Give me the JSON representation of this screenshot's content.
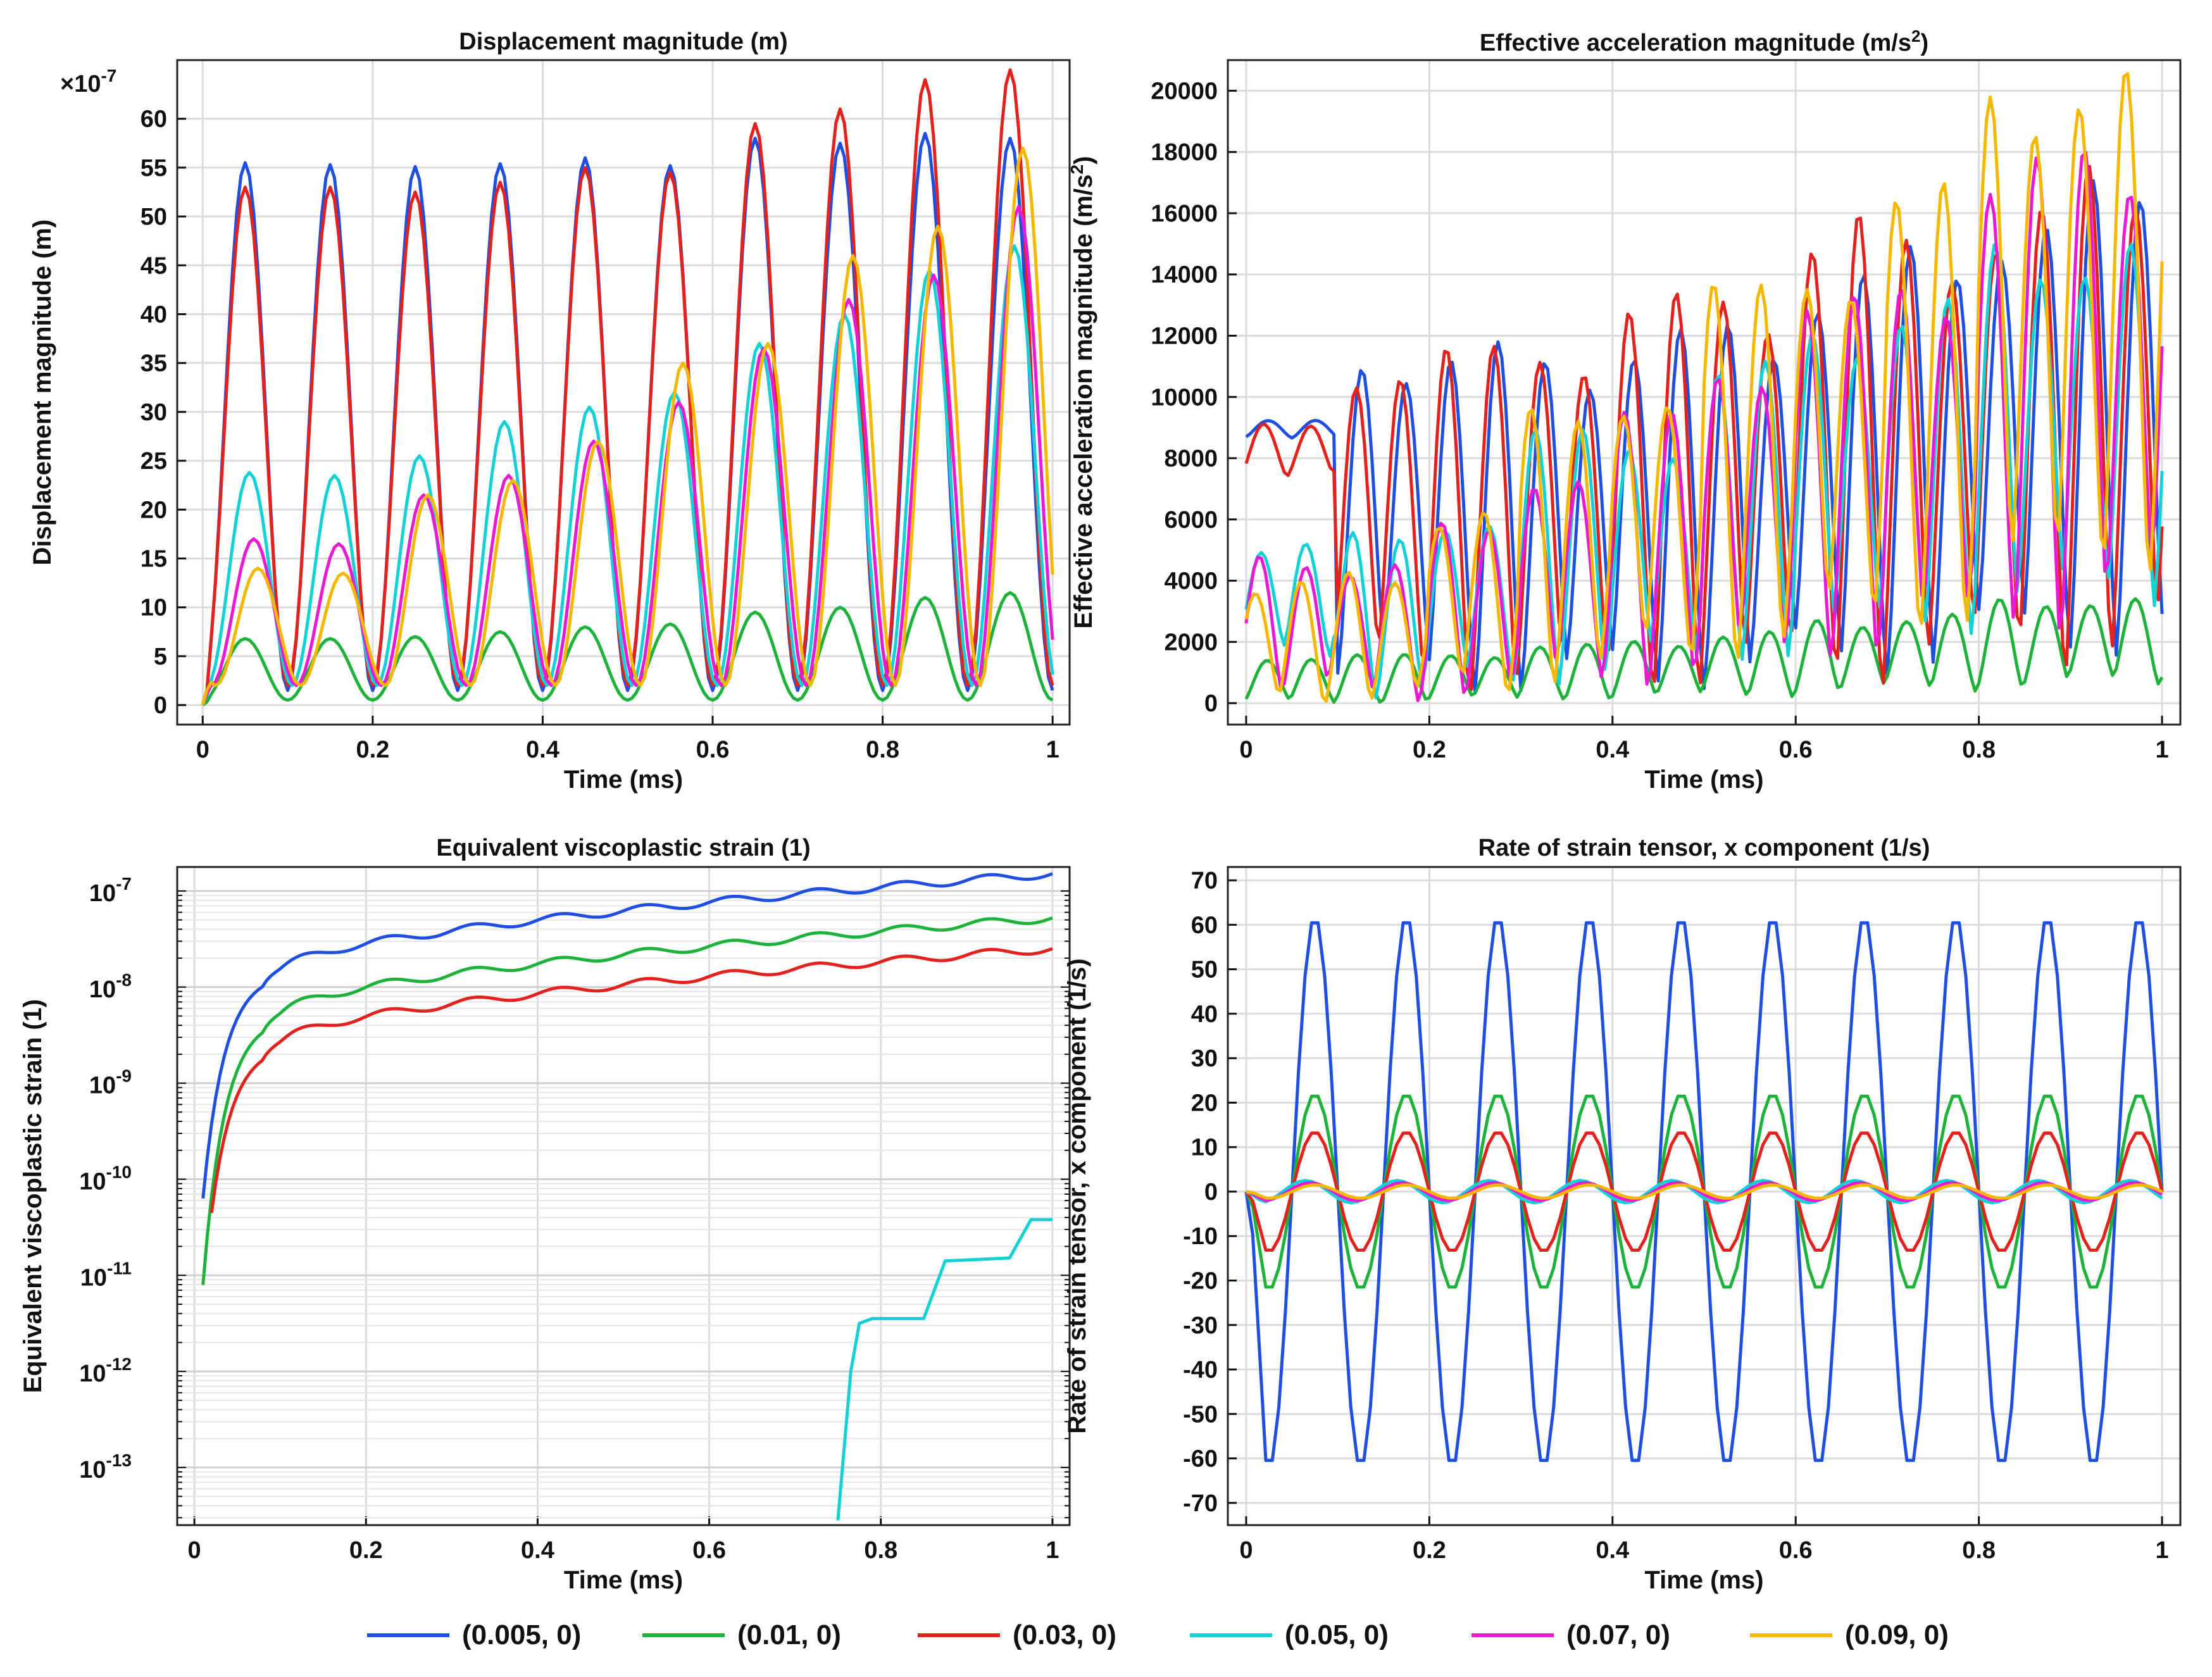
{
  "legend": [
    {
      "name": "(0.005, 0)",
      "color": "#1f4fe0"
    },
    {
      "name": "(0.01, 0)",
      "color": "#1db33a"
    },
    {
      "name": "(0.03, 0)",
      "color": "#e3211d"
    },
    {
      "name": "(0.05, 0)",
      "color": "#13d1d6"
    },
    {
      "name": "(0.07, 0)",
      "color": "#e81ad6"
    },
    {
      "name": "(0.09, 0)",
      "color": "#f5b800"
    }
  ],
  "chart_data": [
    {
      "type": "line",
      "title": "Displacement magnitude (m)",
      "xlabel": "Time (ms)",
      "ylabel": "Displacement magnitude (m)",
      "multiplier": "×10",
      "multiplier_exp": "-7",
      "xlim": [
        -0.03,
        1.02
      ],
      "ylim": [
        -2,
        66
      ],
      "xticks": [
        0,
        0.2,
        0.4,
        0.6,
        0.8,
        1
      ],
      "xtick_labels": [
        "0",
        "0.2",
        "0.4",
        "0.6",
        "0.8",
        "1"
      ],
      "yticks": [
        0,
        5,
        10,
        15,
        20,
        25,
        30,
        35,
        40,
        45,
        50,
        55,
        60
      ],
      "ytick_labels": [
        "0",
        "5",
        "10",
        "15",
        "20",
        "25",
        "30",
        "35",
        "40",
        "45",
        "50",
        "55",
        "60"
      ],
      "grid": true,
      "series": [
        {
          "name": "(0.005, 0)",
          "period": 0.1,
          "phase": 0.05,
          "peaks": [
            55.5,
            55.3,
            55.1,
            55.4,
            56.0,
            55.2,
            58.0,
            57.5,
            58.5,
            58.0
          ],
          "base": 1.5
        },
        {
          "name": "(0.01, 0)",
          "period": 0.1,
          "phase": 0.05,
          "peaks": [
            6.8,
            6.8,
            7.0,
            7.5,
            8.0,
            8.3,
            9.5,
            10.0,
            11.0,
            11.5
          ],
          "base": 0.5
        },
        {
          "name": "(0.03, 0)",
          "period": 0.1,
          "phase": 0.05,
          "peaks": [
            53.0,
            53.0,
            52.5,
            53.5,
            55.0,
            54.5,
            59.5,
            61.0,
            64.0,
            65.0
          ],
          "base": 2.0
        },
        {
          "name": "(0.05, 0)",
          "period": 0.1,
          "phase": 0.055,
          "peaks": [
            23.8,
            23.5,
            25.5,
            29.0,
            30.5,
            32.0,
            37.0,
            40.0,
            44.5,
            47.0
          ],
          "base": 2.0
        },
        {
          "name": "(0.07, 0)",
          "period": 0.1,
          "phase": 0.06,
          "peaks": [
            17.0,
            16.5,
            21.5,
            23.5,
            27.0,
            31.0,
            36.5,
            41.5,
            44.0,
            51.0
          ],
          "base": 2.0
        },
        {
          "name": "(0.09, 0)",
          "period": 0.1,
          "phase": 0.065,
          "peaks": [
            14.0,
            13.5,
            21.5,
            23.0,
            27.0,
            35.0,
            37.0,
            46.0,
            49.0,
            57.0
          ],
          "base": 2.0
        }
      ]
    },
    {
      "type": "line",
      "title": "Effective acceleration magnitude (m/s",
      "title_sup": "2",
      "title_end": ")",
      "xlabel": "Time (ms)",
      "ylabel": "Effective acceleration magnitude (m/s",
      "ylabel_sup": "2",
      "ylabel_end": ")",
      "xlim": [
        -0.02,
        1.02
      ],
      "ylim": [
        -700,
        21000
      ],
      "xticks": [
        0,
        0.2,
        0.4,
        0.6,
        0.8,
        1
      ],
      "xtick_labels": [
        "0",
        "0.2",
        "0.4",
        "0.6",
        "0.8",
        "1"
      ],
      "yticks": [
        0,
        2000,
        4000,
        6000,
        8000,
        10000,
        12000,
        14000,
        16000,
        18000,
        20000
      ],
      "ytick_labels": [
        "0",
        "2000",
        "4000",
        "6000",
        "8000",
        "10000",
        "12000",
        "14000",
        "16000",
        "18000",
        "20000"
      ],
      "grid": true,
      "series": [
        {
          "name": "(0.005, 0)",
          "period": 0.05,
          "low": [
            8700,
            1200,
            1000,
            1000,
            1000,
            1300,
            1500,
            1800,
            2200,
            2500
          ],
          "high": [
            9200,
            11200,
            11000,
            11000,
            11500,
            11800,
            13500,
            14000,
            15500,
            16000
          ]
        },
        {
          "name": "(0.01, 0)",
          "period": 0.05,
          "low": [
            0,
            100,
            100,
            200,
            200,
            300,
            400,
            500,
            600,
            700
          ],
          "high": [
            1500,
            1500,
            1600,
            1800,
            2000,
            2200,
            2600,
            2800,
            3200,
            3400
          ]
        },
        {
          "name": "(0.03, 0)",
          "period": 0.05,
          "low": [
            7500,
            1000,
            900,
            900,
            1000,
            1100,
            1300,
            1500,
            1800,
            2000
          ],
          "high": [
            9000,
            11000,
            11000,
            11500,
            12500,
            13000,
            15000,
            14500,
            15500,
            16500
          ]
        },
        {
          "name": "(0.05, 0)",
          "period": 0.05,
          "low": [
            1700,
            500,
            800,
            1200,
            1500,
            2000,
            2500,
            3000,
            3500,
            4000
          ],
          "high": [
            5200,
            5200,
            6000,
            8500,
            8500,
            10500,
            12000,
            12500,
            14500,
            14500
          ]
        },
        {
          "name": "(0.07, 0)",
          "period": 0.05,
          "low": [
            500,
            200,
            500,
            800,
            1000,
            1500,
            2000,
            2500,
            3000,
            3500
          ],
          "high": [
            4500,
            4500,
            5500,
            7500,
            9000,
            11000,
            12500,
            13500,
            16800,
            17500
          ]
        },
        {
          "name": "(0.09, 0)",
          "period": 0.05,
          "low": [
            200,
            200,
            500,
            1000,
            1500,
            2000,
            2500,
            3000,
            4000,
            5000
          ],
          "high": [
            3800,
            4000,
            6200,
            9000,
            10000,
            13000,
            14000,
            16000,
            19800,
            19600
          ]
        }
      ]
    },
    {
      "type": "line",
      "scale": "log",
      "title": "Equivalent viscoplastic strain (1)",
      "xlabel": "Time (ms)",
      "ylabel": "Equivalent viscoplastic strain (1)",
      "xlim": [
        -0.02,
        1.02
      ],
      "ylim_exp": [
        -13.6,
        -6.75
      ],
      "xticks": [
        0,
        0.2,
        0.4,
        0.6,
        0.8,
        1
      ],
      "xtick_labels": [
        "0",
        "0.2",
        "0.4",
        "0.6",
        "0.8",
        "1"
      ],
      "yticks_exp": [
        -7,
        -8,
        -9,
        -10,
        -11,
        -12,
        -13
      ],
      "ytick_labels": [
        "-7",
        "-8",
        "-9",
        "-10",
        "-11",
        "-12",
        "-13"
      ],
      "ytick_base": "10",
      "grid": true,
      "series": [
        {
          "name": "(0.005, 0)",
          "start": 0.01,
          "start_exp": -10.2,
          "knee": -7.85,
          "final_exp": -6.82
        },
        {
          "name": "(0.01, 0)",
          "start": 0.01,
          "start_exp": -11.1,
          "knee": -8.3,
          "final_exp": -7.28
        },
        {
          "name": "(0.03, 0)",
          "start": 0.02,
          "start_exp": -10.35,
          "knee": -8.6,
          "final_exp": -7.6
        },
        {
          "name": "(0.05, 0)",
          "start": 0.75,
          "points": [
            [
              0.75,
              -13.55
            ],
            [
              0.765,
              -12.0
            ],
            [
              0.775,
              -11.5
            ],
            [
              0.79,
              -11.45
            ],
            [
              0.85,
              -11.45
            ],
            [
              0.875,
              -10.85
            ],
            [
              0.95,
              -10.82
            ],
            [
              0.975,
              -10.42
            ],
            [
              1.0,
              -10.42
            ]
          ]
        }
      ]
    },
    {
      "type": "line",
      "title": "Rate of strain tensor, x component (1/s)",
      "xlabel": "Time (ms)",
      "ylabel": "Rate of strain tensor, x component (1/s)",
      "xlim": [
        -0.02,
        1.02
      ],
      "ylim": [
        -75,
        73
      ],
      "xticks": [
        0,
        0.2,
        0.4,
        0.6,
        0.8,
        1
      ],
      "xtick_labels": [
        "0",
        "0.2",
        "0.4",
        "0.6",
        "0.8",
        "1"
      ],
      "yticks": [
        70,
        60,
        50,
        40,
        30,
        20,
        10,
        0,
        -10,
        -20,
        -30,
        -40,
        -50,
        -60,
        -70
      ],
      "ytick_labels": [
        "70",
        "60",
        "50",
        "40",
        "30",
        "20",
        "10",
        "0",
        "-10",
        "-20",
        "-30",
        "-40",
        "-50",
        "-60",
        "-70"
      ],
      "grid": true,
      "series": [
        {
          "name": "(0.005, 0)",
          "amplitude": 62,
          "period": 0.1,
          "peak_time": 0.075
        },
        {
          "name": "(0.01, 0)",
          "amplitude": 22,
          "period": 0.1,
          "peak_time": 0.075
        },
        {
          "name": "(0.03, 0)",
          "amplitude": 13.5,
          "period": 0.1,
          "peak_time": 0.075
        },
        {
          "name": "(0.05, 0)",
          "amplitude": 2.5,
          "period": 0.1,
          "peak_time": 0.065
        },
        {
          "name": "(0.07, 0)",
          "amplitude": 2.0,
          "period": 0.1,
          "peak_time": 0.07
        },
        {
          "name": "(0.09, 0)",
          "amplitude": 1.5,
          "period": 0.1,
          "peak_time": 0.075
        }
      ]
    }
  ]
}
